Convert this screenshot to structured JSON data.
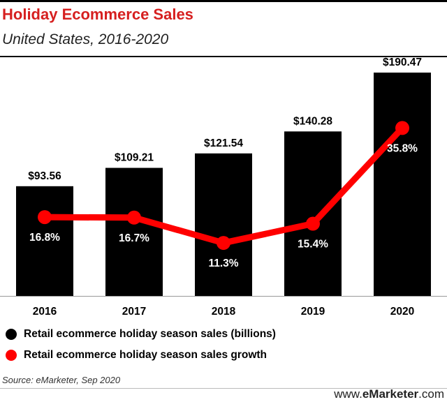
{
  "header": {
    "title": "Holiday Ecommerce Sales",
    "subtitle": "United States, 2016-2020"
  },
  "chart_data": {
    "type": "bar",
    "categories": [
      "2016",
      "2017",
      "2018",
      "2019",
      "2020"
    ],
    "series": [
      {
        "name": "Retail ecommerce holiday season sales (billions)",
        "type": "bar",
        "values": [
          93.56,
          109.21,
          121.54,
          140.28,
          190.47
        ],
        "labels": [
          "$93.56",
          "$109.21",
          "$121.54",
          "$140.28",
          "$190.47"
        ],
        "color": "#000000"
      },
      {
        "name": "Retail ecommerce holiday season sales growth",
        "type": "line",
        "values": [
          16.8,
          16.7,
          11.3,
          15.4,
          35.8
        ],
        "labels": [
          "16.8%",
          "16.7%",
          "11.3%",
          "15.4%",
          "35.8%"
        ],
        "color": "#ff0000"
      }
    ],
    "ylim": [
      0,
      200
    ],
    "growth_ylim": [
      0,
      50
    ],
    "legend_position": "bottom-left"
  },
  "legend": [
    {
      "label": "Retail ecommerce holiday season sales (billions)",
      "color": "#000000"
    },
    {
      "label": "Retail ecommerce holiday season sales growth",
      "color": "#ff0000"
    }
  ],
  "footer": {
    "source": "Source: eMarketer, Sep 2020",
    "brand_prefix": "www.",
    "brand_name": "eMarketer",
    "brand_suffix": ".com"
  }
}
